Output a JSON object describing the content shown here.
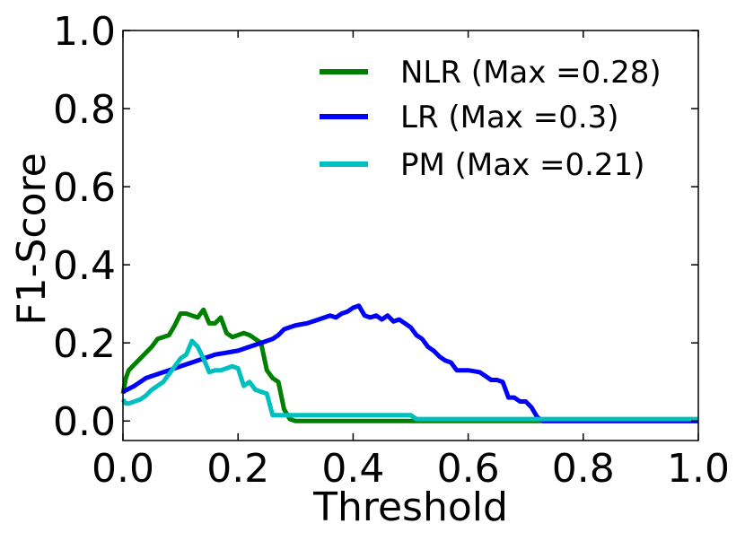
{
  "chart_data": {
    "type": "line",
    "title": "",
    "xlabel": "Threshold",
    "ylabel": "F1-Score",
    "xlim": [
      0.0,
      1.0
    ],
    "ylim": [
      -0.05,
      1.0
    ],
    "xticks": [
      "0.0",
      "0.2",
      "0.4",
      "0.6",
      "0.8",
      "1.0"
    ],
    "yticks": [
      "0.0",
      "0.2",
      "0.4",
      "0.6",
      "0.8",
      "1.0"
    ],
    "grid": false,
    "legend_position": "top-right",
    "series": [
      {
        "name": "NLR (Max =0.28)",
        "color": "#008000",
        "x": [
          0.0,
          0.005,
          0.01,
          0.02,
          0.03,
          0.04,
          0.05,
          0.06,
          0.07,
          0.08,
          0.09,
          0.1,
          0.11,
          0.12,
          0.13,
          0.14,
          0.15,
          0.16,
          0.17,
          0.18,
          0.19,
          0.2,
          0.21,
          0.22,
          0.23,
          0.24,
          0.25,
          0.26,
          0.27,
          0.28,
          0.29,
          0.3,
          0.31,
          0.32,
          0.33,
          0.35,
          0.4,
          0.5,
          0.6,
          0.7,
          0.8,
          0.9,
          1.0
        ],
        "y": [
          0.07,
          0.11,
          0.13,
          0.145,
          0.16,
          0.175,
          0.19,
          0.21,
          0.215,
          0.22,
          0.245,
          0.275,
          0.275,
          0.27,
          0.265,
          0.285,
          0.25,
          0.25,
          0.265,
          0.225,
          0.215,
          0.22,
          0.225,
          0.22,
          0.21,
          0.2,
          0.13,
          0.11,
          0.1,
          0.03,
          0.005,
          0.0,
          0.0,
          0.0,
          0.0,
          0.0,
          0.0,
          0.0,
          0.0,
          0.0,
          0.0,
          0.0,
          0.0
        ]
      },
      {
        "name": "LR (Max =0.3)",
        "color": "#0000ff",
        "x": [
          0.0,
          0.02,
          0.04,
          0.06,
          0.08,
          0.1,
          0.12,
          0.14,
          0.16,
          0.18,
          0.2,
          0.22,
          0.24,
          0.26,
          0.27,
          0.28,
          0.3,
          0.32,
          0.34,
          0.35,
          0.36,
          0.37,
          0.38,
          0.39,
          0.4,
          0.41,
          0.42,
          0.43,
          0.44,
          0.45,
          0.46,
          0.47,
          0.48,
          0.49,
          0.5,
          0.51,
          0.52,
          0.53,
          0.54,
          0.55,
          0.56,
          0.57,
          0.58,
          0.6,
          0.62,
          0.64,
          0.65,
          0.66,
          0.67,
          0.68,
          0.69,
          0.7,
          0.71,
          0.72,
          0.73,
          0.8,
          0.9,
          1.0
        ],
        "y": [
          0.075,
          0.09,
          0.11,
          0.12,
          0.13,
          0.14,
          0.15,
          0.16,
          0.17,
          0.175,
          0.18,
          0.19,
          0.2,
          0.21,
          0.22,
          0.235,
          0.245,
          0.25,
          0.26,
          0.265,
          0.27,
          0.265,
          0.275,
          0.28,
          0.29,
          0.295,
          0.27,
          0.265,
          0.27,
          0.26,
          0.27,
          0.255,
          0.26,
          0.25,
          0.24,
          0.22,
          0.21,
          0.19,
          0.18,
          0.165,
          0.155,
          0.15,
          0.13,
          0.13,
          0.125,
          0.105,
          0.105,
          0.1,
          0.06,
          0.06,
          0.05,
          0.05,
          0.035,
          0.01,
          0.0,
          0.0,
          0.0,
          0.0
        ]
      },
      {
        "name": "PM (Max =0.21)",
        "color": "#00bfbf",
        "x": [
          0.0,
          0.005,
          0.01,
          0.02,
          0.03,
          0.04,
          0.05,
          0.06,
          0.07,
          0.08,
          0.09,
          0.1,
          0.11,
          0.12,
          0.13,
          0.14,
          0.15,
          0.16,
          0.17,
          0.18,
          0.19,
          0.2,
          0.21,
          0.22,
          0.23,
          0.24,
          0.25,
          0.26,
          0.27,
          0.28,
          0.3,
          0.35,
          0.4,
          0.45,
          0.5,
          0.51,
          0.6,
          0.7,
          0.8,
          0.9,
          1.0
        ],
        "y": [
          0.055,
          0.045,
          0.045,
          0.05,
          0.055,
          0.065,
          0.08,
          0.09,
          0.1,
          0.12,
          0.14,
          0.16,
          0.17,
          0.205,
          0.19,
          0.16,
          0.125,
          0.13,
          0.13,
          0.135,
          0.14,
          0.135,
          0.09,
          0.1,
          0.08,
          0.075,
          0.07,
          0.015,
          0.015,
          0.015,
          0.015,
          0.015,
          0.015,
          0.015,
          0.015,
          0.005,
          0.005,
          0.005,
          0.005,
          0.005,
          0.005
        ]
      }
    ]
  }
}
